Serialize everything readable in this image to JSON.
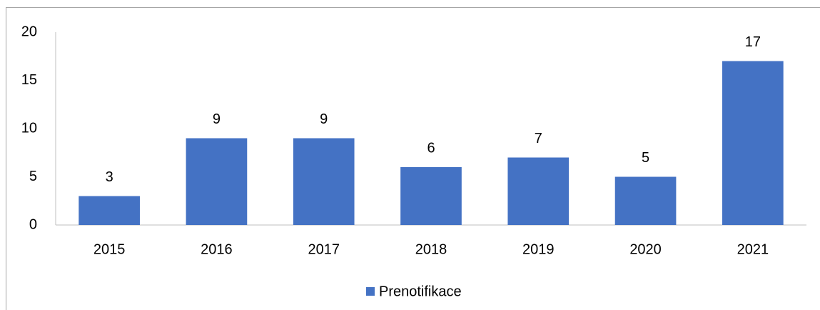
{
  "chart_data": {
    "type": "bar",
    "categories": [
      "2015",
      "2016",
      "2017",
      "2018",
      "2019",
      "2020",
      "2021"
    ],
    "series": [
      {
        "name": "Prenotifikace",
        "color": "#4472c4",
        "values": [
          3,
          9,
          9,
          6,
          7,
          5,
          17
        ]
      }
    ],
    "ylim": [
      0,
      20
    ],
    "yticks": [
      0,
      5,
      10,
      15,
      20
    ],
    "grid": false,
    "data_labels": true,
    "legend": "bottom"
  }
}
